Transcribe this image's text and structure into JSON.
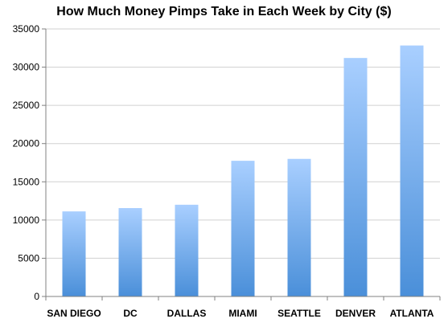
{
  "chart_data": {
    "type": "bar",
    "title": "How Much Money Pimps Take in Each Week by City ($)",
    "xlabel": "",
    "ylabel": "",
    "categories": [
      "San Diego",
      "DC",
      "Dallas",
      "Miami",
      "Seattle",
      "Denver",
      "Atlanta"
    ],
    "category_display": [
      "SAN DIEGO",
      "DC",
      "DALLAS",
      "MIAMI",
      "SEATTLE",
      "DENVER",
      "ATLANTA"
    ],
    "values": [
      11129,
      11563,
      12000,
      17750,
      18000,
      31200,
      32833
    ],
    "ylim": [
      0,
      35000
    ],
    "yticks": [
      0,
      5000,
      10000,
      15000,
      20000,
      25000,
      30000,
      35000
    ],
    "grid": true,
    "legend": "none",
    "colors": {
      "bar_top": "#a9cfff",
      "bar_bottom": "#4a8fd9",
      "grid": "#d0d0d0",
      "axis": "#808080"
    }
  }
}
